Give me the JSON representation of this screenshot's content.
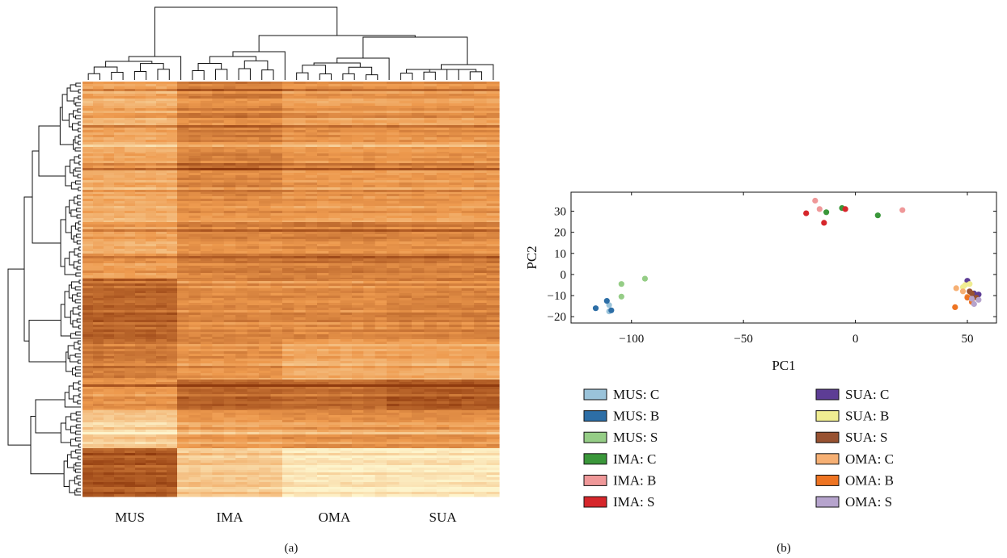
{
  "panel_labels": {
    "a": "(a)",
    "b": "(b)"
  },
  "chart_data": [
    {
      "type": "heatmap",
      "title": "",
      "column_groups": [
        "MUS",
        "IMA",
        "OMA",
        "SUA"
      ],
      "columns_per_group": 9,
      "color_scale": {
        "low": "#8f3a0e",
        "mid": "#ee9a4e",
        "high": "#fdf4cc"
      },
      "row_blocks": [
        {
          "name": "block1",
          "values": [
            0.6,
            0.4,
            0.5,
            0.5
          ]
        },
        {
          "name": "block2",
          "values": [
            0.55,
            0.35,
            0.45,
            0.45
          ]
        },
        {
          "name": "block3",
          "values": [
            0.6,
            0.45,
            0.5,
            0.5
          ]
        },
        {
          "name": "block4",
          "values": [
            0.55,
            0.4,
            0.38,
            0.4
          ]
        },
        {
          "name": "block5",
          "values": [
            0.25,
            0.45,
            0.45,
            0.42
          ]
        },
        {
          "name": "block6",
          "values": [
            0.35,
            0.48,
            0.6,
            0.58
          ]
        },
        {
          "name": "block7",
          "values": [
            0.5,
            0.25,
            0.3,
            0.2
          ]
        },
        {
          "name": "block8",
          "values": [
            0.8,
            0.55,
            0.5,
            0.5
          ]
        },
        {
          "name": "block9",
          "values": [
            0.15,
            0.75,
            0.92,
            0.92
          ]
        }
      ],
      "row_dendrogram": true,
      "column_dendrogram": true
    },
    {
      "type": "scatter",
      "title": "",
      "xlabel": "PC1",
      "ylabel": "PC2",
      "xlim": [
        -127,
        63
      ],
      "ylim": [
        -23,
        39
      ],
      "xticks": [
        -100,
        -50,
        0,
        50
      ],
      "xtick_labels": [
        "−100",
        "−50",
        "0",
        "50"
      ],
      "yticks": [
        -20,
        -10,
        0,
        10,
        20,
        30
      ],
      "ytick_labels": [
        "−20",
        "−10",
        "0",
        "10",
        "20",
        "30"
      ],
      "grid": false,
      "legend_position": "bottom",
      "series": [
        {
          "name": "MUS: C",
          "color": "#9ac3da",
          "points": [
            [
              -110,
              -14.5
            ],
            [
              -110,
              -17.5
            ]
          ]
        },
        {
          "name": "MUS: B",
          "color": "#2d6ea6",
          "points": [
            [
              -116,
              -16
            ],
            [
              -111,
              -12.5
            ],
            [
              -109,
              -17
            ]
          ]
        },
        {
          "name": "MUS: S",
          "color": "#95cd86",
          "points": [
            [
              -94,
              -2
            ],
            [
              -104.5,
              -4.5
            ],
            [
              -104.5,
              -10.5
            ]
          ]
        },
        {
          "name": "IMA: C",
          "color": "#3a973a",
          "points": [
            [
              -13,
              29.5
            ],
            [
              -6,
              31.5
            ],
            [
              10,
              28
            ]
          ]
        },
        {
          "name": "IMA: B",
          "color": "#ef9899",
          "points": [
            [
              -18,
              35
            ],
            [
              -16,
              31
            ],
            [
              21,
              30.5
            ]
          ]
        },
        {
          "name": "IMA: S",
          "color": "#d6262b",
          "points": [
            [
              -22,
              29
            ],
            [
              -14,
              24.5
            ],
            [
              -4.5,
              31
            ]
          ]
        },
        {
          "name": "SUA: C",
          "color": "#5d3d95",
          "points": [
            [
              50,
              -3
            ],
            [
              55,
              -9.5
            ],
            [
              53,
              -9
            ]
          ]
        },
        {
          "name": "SUA: B",
          "color": "#f0ed92",
          "points": [
            [
              49,
              -5
            ],
            [
              51,
              -4.5
            ],
            [
              48,
              -6
            ]
          ]
        },
        {
          "name": "SUA: S",
          "color": "#985231",
          "points": [
            [
              52,
              -9
            ],
            [
              51,
              -8
            ],
            [
              54,
              -11
            ]
          ]
        },
        {
          "name": "OMA: C",
          "color": "#f6b074",
          "points": [
            [
              45,
              -6.5
            ],
            [
              50,
              -10.5
            ],
            [
              48,
              -8
            ]
          ]
        },
        {
          "name": "OMA: B",
          "color": "#ee7422",
          "points": [
            [
              44.5,
              -15.5
            ],
            [
              52,
              -13
            ],
            [
              50,
              -11
            ]
          ]
        },
        {
          "name": "OMA: S",
          "color": "#b6a4cd",
          "points": [
            [
              53,
              -14
            ],
            [
              55,
              -12
            ],
            [
              52,
              -11.5
            ]
          ]
        }
      ]
    }
  ]
}
